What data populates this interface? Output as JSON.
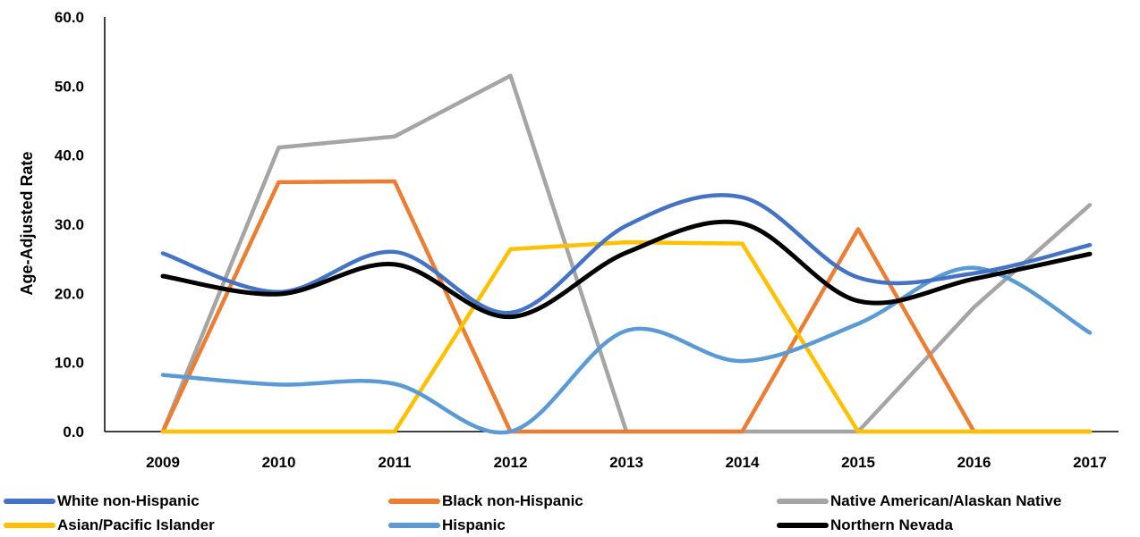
{
  "chart_data": {
    "type": "line",
    "title": "",
    "xlabel": "",
    "ylabel": "Age-Adjusted Rate",
    "ylim": [
      0,
      60
    ],
    "y_ticks": [
      "0.0",
      "10.0",
      "20.0",
      "30.0",
      "40.0",
      "50.0",
      "60.0"
    ],
    "categories": [
      "2009",
      "2010",
      "2011",
      "2012",
      "2013",
      "2014",
      "2015",
      "2016",
      "2017"
    ],
    "legend_position": "bottom",
    "series": [
      {
        "name": "White non-Hispanic",
        "color": "#4472C4",
        "smooth": true,
        "values": [
          25.8,
          20.2,
          26.0,
          17.2,
          29.8,
          33.9,
          22.3,
          22.9,
          27.0
        ]
      },
      {
        "name": "Black non-Hispanic",
        "color": "#ED7D31",
        "smooth": false,
        "values": [
          0.0,
          36.1,
          36.2,
          0.0,
          0.0,
          0.0,
          29.3,
          0.0,
          0.0
        ]
      },
      {
        "name": "Native American/Alaskan Native",
        "color": "#A5A5A5",
        "smooth": false,
        "values": [
          0.0,
          41.1,
          42.7,
          51.5,
          0.0,
          0.0,
          0.0,
          18.0,
          32.8
        ]
      },
      {
        "name": "Asian/Pacific Islander",
        "color": "#FFC000",
        "smooth": false,
        "values": [
          0.0,
          0.0,
          0.0,
          26.4,
          27.4,
          27.2,
          0.0,
          0.0,
          0.0
        ]
      },
      {
        "name": "Hispanic",
        "color": "#5B9BD5",
        "smooth": true,
        "values": [
          8.2,
          6.8,
          6.9,
          0.0,
          14.6,
          10.2,
          15.6,
          23.7,
          14.3
        ]
      },
      {
        "name": "Northern Nevada",
        "color": "#000000",
        "smooth": true,
        "values": [
          22.5,
          19.9,
          24.2,
          16.6,
          25.9,
          30.1,
          18.9,
          22.1,
          25.7
        ]
      }
    ]
  }
}
